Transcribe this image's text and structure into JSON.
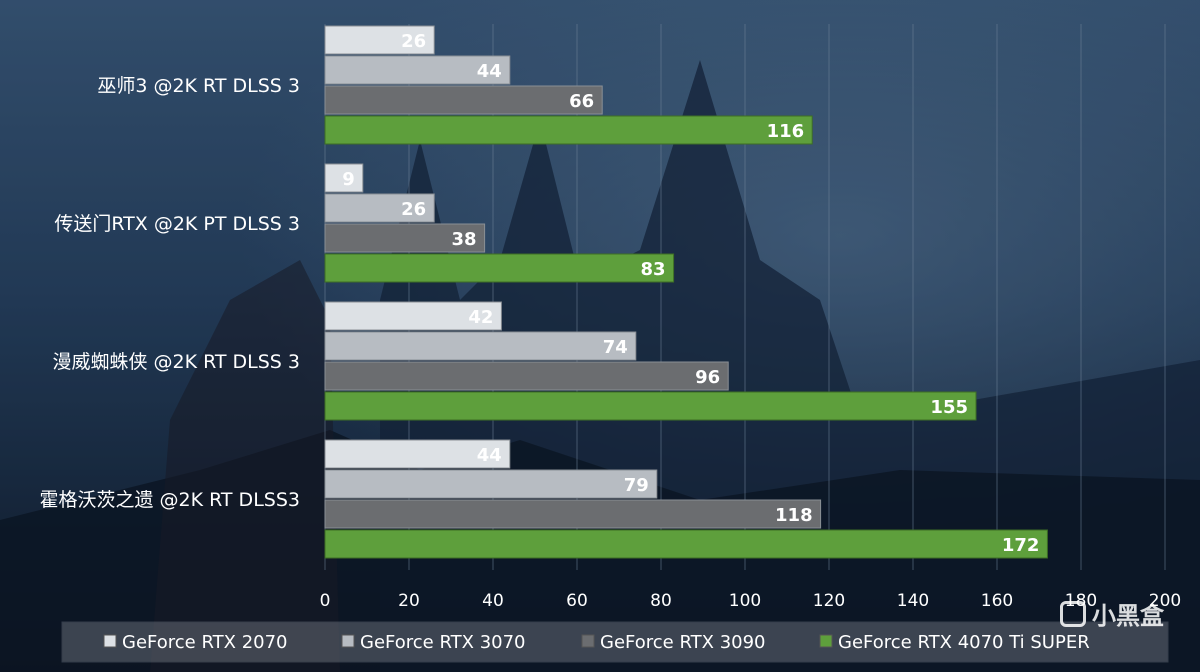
{
  "chart_data": {
    "type": "bar",
    "orientation": "horizontal",
    "categories": [
      "巫师3 @2K RT DLSS 3",
      "传送门RTX @2K PT DLSS 3",
      "漫威蜘蛛侠 @2K RT DLSS 3",
      "霍格沃茨之遗 @2K RT DLSS3"
    ],
    "series": [
      {
        "name": "GeForce RTX 2070",
        "values": [
          26,
          9,
          42,
          44
        ],
        "color": "#dde1e5"
      },
      {
        "name": "GeForce RTX 3070",
        "values": [
          44,
          26,
          74,
          79
        ],
        "color": "#b7bcc2"
      },
      {
        "name": "GeForce RTX 3090",
        "values": [
          66,
          38,
          96,
          118
        ],
        "color": "#6b6d70"
      },
      {
        "name": "GeForce RTX 4070 Ti SUPER",
        "values": [
          116,
          83,
          155,
          172
        ],
        "color": "#5e9f3c"
      }
    ],
    "xlim": [
      0,
      200
    ],
    "xticks": [
      0,
      20,
      40,
      60,
      80,
      100,
      120,
      140,
      160,
      180,
      200
    ],
    "grid": true,
    "legend_position": "bottom",
    "title": "",
    "xlabel": "",
    "ylabel": ""
  },
  "watermark": {
    "text": "小黑盒"
  }
}
